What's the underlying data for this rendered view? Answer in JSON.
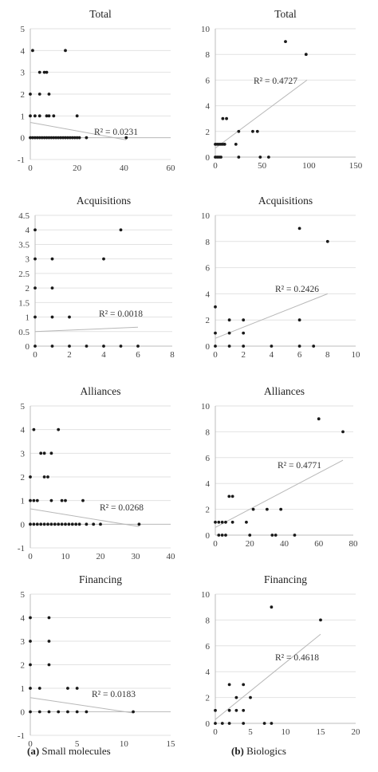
{
  "captions": {
    "a_label": "(a)",
    "a_text": " Small molecules",
    "b_label": "(b)",
    "b_text": " Biologics"
  },
  "chart_data": [
    {
      "id": "a-total",
      "type": "scatter",
      "title": "Total",
      "xlim": [
        0,
        60
      ],
      "xticks": [
        0,
        20,
        40,
        60
      ],
      "ylim": [
        -1,
        5
      ],
      "yticks": [
        -1,
        0,
        1,
        2,
        3,
        4,
        5
      ],
      "r2_label": "R² = 0.0231",
      "trendline": [
        [
          0,
          0.7
        ],
        [
          41,
          -0.1
        ]
      ],
      "points": [
        [
          1,
          4
        ],
        [
          15,
          4
        ],
        [
          4,
          3
        ],
        [
          6,
          3
        ],
        [
          7,
          3
        ],
        [
          0,
          2
        ],
        [
          4,
          2
        ],
        [
          8,
          2
        ],
        [
          0,
          1
        ],
        [
          2,
          1
        ],
        [
          4,
          1
        ],
        [
          7,
          1
        ],
        [
          8,
          1
        ],
        [
          10,
          1
        ],
        [
          20,
          1
        ],
        [
          0,
          0
        ],
        [
          1,
          0
        ],
        [
          2,
          0
        ],
        [
          3,
          0
        ],
        [
          4,
          0
        ],
        [
          5,
          0
        ],
        [
          6,
          0
        ],
        [
          7,
          0
        ],
        [
          8,
          0
        ],
        [
          9,
          0
        ],
        [
          10,
          0
        ],
        [
          11,
          0
        ],
        [
          12,
          0
        ],
        [
          13,
          0
        ],
        [
          14,
          0
        ],
        [
          15,
          0
        ],
        [
          16,
          0
        ],
        [
          17,
          0
        ],
        [
          18,
          0
        ],
        [
          19,
          0
        ],
        [
          20,
          0
        ],
        [
          21,
          0
        ],
        [
          24,
          0
        ],
        [
          41,
          0
        ]
      ]
    },
    {
      "id": "b-total",
      "type": "scatter",
      "title": "Total",
      "xlim": [
        0,
        150
      ],
      "xticks": [
        0,
        50,
        100,
        150
      ],
      "ylim": [
        0,
        10
      ],
      "yticks": [
        0,
        2,
        4,
        6,
        8,
        10
      ],
      "r2_label": "R² = 0.4727",
      "trendline": [
        [
          0,
          0.7
        ],
        [
          98,
          6
        ]
      ],
      "points": [
        [
          75,
          9
        ],
        [
          97,
          8
        ],
        [
          8,
          3
        ],
        [
          12,
          3
        ],
        [
          0,
          1
        ],
        [
          2,
          1
        ],
        [
          4,
          1
        ],
        [
          6,
          1
        ],
        [
          8,
          1
        ],
        [
          10,
          1
        ],
        [
          22,
          1
        ],
        [
          25,
          2
        ],
        [
          40,
          2
        ],
        [
          45,
          2
        ],
        [
          0,
          0
        ],
        [
          2,
          0
        ],
        [
          4,
          0
        ],
        [
          6,
          0
        ],
        [
          25,
          0
        ],
        [
          48,
          0
        ],
        [
          57,
          0
        ]
      ]
    },
    {
      "id": "a-acquisitions",
      "type": "scatter",
      "title": "Acquisitions",
      "xlim": [
        0,
        8
      ],
      "xticks": [
        0,
        2,
        4,
        6,
        8
      ],
      "ylim": [
        0,
        4.5
      ],
      "yticks": [
        0,
        0.5,
        1,
        1.5,
        2,
        2.5,
        3,
        3.5,
        4,
        4.5
      ],
      "r2_label": "R² = 0.0018",
      "trendline": [
        [
          0,
          0.5
        ],
        [
          6,
          0.65
        ]
      ],
      "points": [
        [
          0,
          4
        ],
        [
          5,
          4
        ],
        [
          0,
          3
        ],
        [
          1,
          3
        ],
        [
          4,
          3
        ],
        [
          0,
          2
        ],
        [
          1,
          2
        ],
        [
          0,
          1
        ],
        [
          1,
          1
        ],
        [
          2,
          1
        ],
        [
          0,
          0
        ],
        [
          1,
          0
        ],
        [
          2,
          0
        ],
        [
          3,
          0
        ],
        [
          4,
          0
        ],
        [
          5,
          0
        ],
        [
          6,
          0
        ]
      ]
    },
    {
      "id": "b-acquisitions",
      "type": "scatter",
      "title": "Acquisitions",
      "xlim": [
        0,
        10
      ],
      "xticks": [
        0,
        2,
        4,
        6,
        8,
        10
      ],
      "ylim": [
        0,
        10
      ],
      "yticks": [
        0,
        2,
        4,
        6,
        8,
        10
      ],
      "r2_label": "R² = 0.2426",
      "trendline": [
        [
          0,
          0.6
        ],
        [
          8,
          4
        ]
      ],
      "points": [
        [
          6,
          9
        ],
        [
          8,
          8
        ],
        [
          0,
          3
        ],
        [
          1,
          2
        ],
        [
          2,
          2
        ],
        [
          6,
          2
        ],
        [
          0,
          1
        ],
        [
          1,
          1
        ],
        [
          2,
          1
        ],
        [
          0,
          0
        ],
        [
          1,
          0
        ],
        [
          2,
          0
        ],
        [
          4,
          0
        ],
        [
          6,
          0
        ],
        [
          7,
          0
        ]
      ]
    },
    {
      "id": "a-alliances",
      "type": "scatter",
      "title": "Alliances",
      "xlim": [
        0,
        40
      ],
      "xticks": [
        0,
        10,
        20,
        30,
        40
      ],
      "ylim": [
        -1,
        5
      ],
      "yticks": [
        -1,
        0,
        1,
        2,
        3,
        4,
        5
      ],
      "r2_label": "R² = 0.0268",
      "trendline": [
        [
          0,
          0.65
        ],
        [
          31,
          -0.1
        ]
      ],
      "points": [
        [
          1,
          4
        ],
        [
          8,
          4
        ],
        [
          3,
          3
        ],
        [
          4,
          3
        ],
        [
          6,
          3
        ],
        [
          0,
          2
        ],
        [
          4,
          2
        ],
        [
          5,
          2
        ],
        [
          0,
          1
        ],
        [
          1,
          1
        ],
        [
          2,
          1
        ],
        [
          6,
          1
        ],
        [
          9,
          1
        ],
        [
          10,
          1
        ],
        [
          15,
          1
        ],
        [
          0,
          0
        ],
        [
          1,
          0
        ],
        [
          2,
          0
        ],
        [
          3,
          0
        ],
        [
          4,
          0
        ],
        [
          5,
          0
        ],
        [
          6,
          0
        ],
        [
          7,
          0
        ],
        [
          8,
          0
        ],
        [
          9,
          0
        ],
        [
          10,
          0
        ],
        [
          11,
          0
        ],
        [
          12,
          0
        ],
        [
          13,
          0
        ],
        [
          14,
          0
        ],
        [
          16,
          0
        ],
        [
          18,
          0
        ],
        [
          20,
          0
        ],
        [
          31,
          0
        ]
      ]
    },
    {
      "id": "b-alliances",
      "type": "scatter",
      "title": "Alliances",
      "xlim": [
        0,
        80
      ],
      "xticks": [
        0,
        20,
        40,
        60,
        80
      ],
      "ylim": [
        0,
        10
      ],
      "yticks": [
        0,
        2,
        4,
        6,
        8,
        10
      ],
      "r2_label": "R² = 0.4771",
      "trendline": [
        [
          0,
          0.6
        ],
        [
          74,
          5.8
        ]
      ],
      "points": [
        [
          60,
          9
        ],
        [
          74,
          8
        ],
        [
          8,
          3
        ],
        [
          10,
          3
        ],
        [
          22,
          2
        ],
        [
          30,
          2
        ],
        [
          38,
          2
        ],
        [
          0,
          1
        ],
        [
          2,
          1
        ],
        [
          4,
          1
        ],
        [
          6,
          1
        ],
        [
          10,
          1
        ],
        [
          18,
          1
        ],
        [
          2,
          0
        ],
        [
          4,
          0
        ],
        [
          6,
          0
        ],
        [
          20,
          0
        ],
        [
          33,
          0
        ],
        [
          35,
          0
        ],
        [
          46,
          0
        ]
      ]
    },
    {
      "id": "a-financing",
      "type": "scatter",
      "title": "Financing",
      "xlim": [
        0,
        15
      ],
      "xticks": [
        0,
        5,
        10,
        15
      ],
      "ylim": [
        -1,
        5
      ],
      "yticks": [
        -1,
        0,
        1,
        2,
        3,
        4,
        5
      ],
      "r2_label": "R² = 0.0183",
      "trendline": [
        [
          0,
          0.6
        ],
        [
          11,
          -0.05
        ]
      ],
      "points": [
        [
          0,
          4
        ],
        [
          2,
          4
        ],
        [
          0,
          3
        ],
        [
          2,
          3
        ],
        [
          0,
          2
        ],
        [
          2,
          2
        ],
        [
          0,
          1
        ],
        [
          1,
          1
        ],
        [
          4,
          1
        ],
        [
          5,
          1
        ],
        [
          0,
          0
        ],
        [
          1,
          0
        ],
        [
          2,
          0
        ],
        [
          3,
          0
        ],
        [
          4,
          0
        ],
        [
          5,
          0
        ],
        [
          6,
          0
        ],
        [
          11,
          0
        ]
      ]
    },
    {
      "id": "b-financing",
      "type": "scatter",
      "title": "Financing",
      "xlim": [
        0,
        20
      ],
      "xticks": [
        0,
        5,
        10,
        15,
        20
      ],
      "ylim": [
        0,
        10
      ],
      "yticks": [
        0,
        2,
        4,
        6,
        8,
        10
      ],
      "r2_label": "R² = 0.4618",
      "trendline": [
        [
          0,
          0.3
        ],
        [
          15,
          6.9
        ]
      ],
      "points": [
        [
          8,
          9
        ],
        [
          15,
          8
        ],
        [
          2,
          3
        ],
        [
          4,
          3
        ],
        [
          3,
          2
        ],
        [
          5,
          2
        ],
        [
          0,
          1
        ],
        [
          2,
          1
        ],
        [
          3,
          1
        ],
        [
          4,
          1
        ],
        [
          0,
          0
        ],
        [
          1,
          0
        ],
        [
          2,
          0
        ],
        [
          4,
          0
        ],
        [
          7,
          0
        ],
        [
          8,
          0
        ]
      ]
    }
  ]
}
